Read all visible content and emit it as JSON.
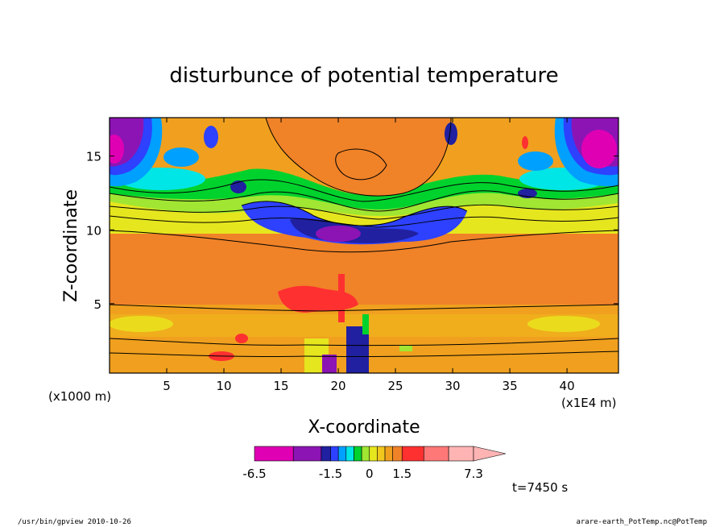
{
  "chart_data": {
    "type": "heatmap",
    "title": "disturbunce of potential temperature",
    "xlabel": "X-coordinate",
    "ylabel": "Z-coordinate",
    "x_unit_left": "(x1000 m)",
    "x_unit_right": "(x1E4 m)",
    "xlim": [
      0,
      44.5
    ],
    "ylim": [
      0.3,
      17.6
    ],
    "x_ticks": [
      5,
      10,
      15,
      20,
      25,
      30,
      35,
      40
    ],
    "y_ticks": [
      5,
      10,
      15
    ],
    "time_label": "t=7450 s",
    "colorbar": {
      "levels": [
        -6.5,
        -4.5,
        -2.5,
        -1.5,
        -1.0,
        -0.75,
        -0.5,
        -0.25,
        0,
        0.25,
        0.5,
        1.0,
        1.5,
        3.0,
        5.0,
        7.3
      ],
      "colors": [
        "#e000b4",
        "#8c14b4",
        "#2020a0",
        "#2d41ff",
        "#00a0ff",
        "#00e6e6",
        "#00d22d",
        "#a0e632",
        "#e6e61e",
        "#f0c81e",
        "#f0a01e",
        "#f08228",
        "#ff3030",
        "#ff7878",
        "#ffb4b4"
      ],
      "tick_labels": [
        "-6.5",
        "-1.5",
        "0",
        "1.5",
        "7.3"
      ]
    },
    "field": [
      {
        "x": 1,
        "z": 16,
        "value": -5.5
      },
      {
        "x": 43,
        "z": 16,
        "value": -5.5
      },
      {
        "x": 21,
        "z": 9.8,
        "value": -3.0
      },
      {
        "x": 18,
        "z": 10.5,
        "value": -1.5
      },
      {
        "x": 25,
        "z": 10.5,
        "value": -1.5
      },
      {
        "x": 22,
        "z": 15,
        "value": 1.0
      },
      {
        "x": 10,
        "z": 7.5,
        "value": 1.0
      },
      {
        "x": 35,
        "z": 7.5,
        "value": 1.0
      },
      {
        "x": 19,
        "z": 5.3,
        "value": 3.0
      },
      {
        "x": 6,
        "z": 3.7,
        "value": 0.3
      },
      {
        "x": 37,
        "z": 3.7,
        "value": 0.3
      },
      {
        "x": 21,
        "z": 1.0,
        "value": -1.5
      }
    ]
  },
  "footer": {
    "left": "/usr/bin/gpview   2010-10-26",
    "right": "arare-earth_PotTemp.nc@PotTemp"
  }
}
